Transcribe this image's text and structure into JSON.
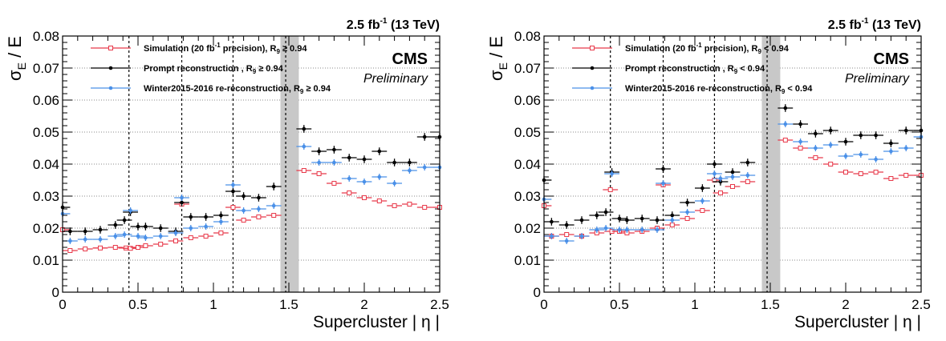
{
  "chart_data": [
    {
      "type": "scatter",
      "panel": "left",
      "lumi": {
        "value": "2.5 fb",
        "sup": "-1",
        "energy": " (13 TeV)"
      },
      "cms_label": "CMS",
      "preliminary_label": "Preliminary",
      "ylabel": {
        "main": "σ",
        "sub": "E",
        "rest": " / E"
      },
      "xlabel": "Supercluster | η |",
      "xlim": [
        0,
        2.5
      ],
      "ylim": [
        0,
        0.08
      ],
      "xticks": [
        "0",
        "0.5",
        "1",
        "1.5",
        "2",
        "2.5"
      ],
      "yticks": [
        "0",
        "0.01",
        "0.02",
        "0.03",
        "0.04",
        "0.05",
        "0.06",
        "0.07",
        "0.08"
      ],
      "grid_y": [
        0.01,
        0.02,
        0.03,
        0.04,
        0.05,
        0.06,
        0.07,
        0.08
      ],
      "vlines": [
        0.44,
        0.79,
        1.13,
        1.479
      ],
      "gap_band": [
        1.4442,
        1.566
      ],
      "legend": [
        {
          "pre": "Simulation (20 fb",
          "sup": "-1",
          "post": " precision), R",
          "sub": "9",
          "cond": " ≥ 0.94",
          "color": "#e8394a",
          "marker": "open-square"
        },
        {
          "pre": "Prompt reconstruction , R",
          "sup": "",
          "post": "",
          "sub": "9",
          "cond": " ≥ 0.94",
          "color": "#000000",
          "marker": "dot"
        },
        {
          "pre": "Winter2015-2016 re-reconstruction, R",
          "sup": "",
          "post": "",
          "sub": "9",
          "cond": " ≥ 0.94",
          "color": "#4a90e8",
          "marker": "dot"
        }
      ],
      "series": [
        {
          "name": "Simulation (20 fb-1 precision), R9 ≥ 0.94",
          "color": "#e8394a",
          "marker": "open-square",
          "x": [
            0.0,
            0.05,
            0.15,
            0.25,
            0.35,
            0.42,
            0.45,
            0.5,
            0.55,
            0.65,
            0.75,
            0.79,
            0.85,
            0.95,
            1.05,
            1.13,
            1.2,
            1.3,
            1.4,
            1.6,
            1.7,
            1.8,
            1.9,
            2.0,
            2.1,
            2.2,
            2.3,
            2.4,
            2.5
          ],
          "y": [
            0.0195,
            0.013,
            0.0135,
            0.0138,
            0.014,
            0.0138,
            0.0137,
            0.014,
            0.0145,
            0.015,
            0.016,
            0.0275,
            0.017,
            0.0175,
            0.0185,
            0.0265,
            0.0225,
            0.0235,
            0.024,
            0.038,
            0.037,
            0.034,
            0.031,
            0.0295,
            0.0285,
            0.027,
            0.0275,
            0.0265,
            0.0265
          ],
          "xerr": 0.05,
          "yerr": 0.0004
        },
        {
          "name": "Prompt reconstruction , R9 ≥ 0.94",
          "color": "#000000",
          "marker": "dot",
          "x": [
            0.0,
            0.05,
            0.15,
            0.25,
            0.35,
            0.41,
            0.45,
            0.5,
            0.55,
            0.65,
            0.75,
            0.79,
            0.85,
            0.95,
            1.05,
            1.13,
            1.2,
            1.3,
            1.4,
            1.6,
            1.7,
            1.8,
            1.9,
            2.0,
            2.1,
            2.2,
            2.3,
            2.4,
            2.5
          ],
          "y": [
            0.0265,
            0.019,
            0.019,
            0.0195,
            0.021,
            0.0225,
            0.025,
            0.0205,
            0.0205,
            0.02,
            0.019,
            0.028,
            0.0235,
            0.0235,
            0.024,
            0.0315,
            0.03,
            0.0295,
            0.033,
            0.051,
            0.044,
            0.0445,
            0.042,
            0.0415,
            0.044,
            0.0405,
            0.0405,
            0.0485,
            0.0485
          ],
          "xerr": 0.05,
          "yerr": 0.0012
        },
        {
          "name": "Winter2015-2016 re-reconstruction, R9 ≥ 0.94",
          "color": "#4a90e8",
          "marker": "dot",
          "x": [
            0.0,
            0.05,
            0.15,
            0.25,
            0.35,
            0.41,
            0.45,
            0.5,
            0.55,
            0.65,
            0.75,
            0.79,
            0.85,
            0.95,
            1.05,
            1.13,
            1.2,
            1.3,
            1.4,
            1.6,
            1.7,
            1.8,
            1.9,
            2.0,
            2.1,
            2.2,
            2.3,
            2.4,
            2.5
          ],
          "y": [
            0.0245,
            0.016,
            0.0165,
            0.0165,
            0.0175,
            0.018,
            0.0255,
            0.0175,
            0.017,
            0.0175,
            0.0185,
            0.0295,
            0.02,
            0.0205,
            0.022,
            0.0335,
            0.0255,
            0.026,
            0.027,
            0.0455,
            0.0405,
            0.0405,
            0.0355,
            0.0345,
            0.036,
            0.034,
            0.038,
            0.039,
            0.039
          ],
          "xerr": 0.05,
          "yerr": 0.001
        }
      ]
    },
    {
      "type": "scatter",
      "panel": "right",
      "lumi": {
        "value": "2.5 fb",
        "sup": "-1",
        "energy": " (13 TeV)"
      },
      "cms_label": "CMS",
      "preliminary_label": "Preliminary",
      "ylabel": {
        "main": "σ",
        "sub": "E",
        "rest": " / E"
      },
      "xlabel": "Supercluster | η |",
      "xlim": [
        0,
        2.5
      ],
      "ylim": [
        0,
        0.08
      ],
      "xticks": [
        "0",
        "0.5",
        "1",
        "1.5",
        "2",
        "2.5"
      ],
      "yticks": [
        "0",
        "0.01",
        "0.02",
        "0.03",
        "0.04",
        "0.05",
        "0.06",
        "0.07",
        "0.08"
      ],
      "grid_y": [
        0.01,
        0.02,
        0.03,
        0.04,
        0.05,
        0.06,
        0.07,
        0.08
      ],
      "vlines": [
        0.44,
        0.79,
        1.13,
        1.479
      ],
      "gap_band": [
        1.4442,
        1.566
      ],
      "legend": [
        {
          "pre": "Simulation (20 fb",
          "sup": "-1",
          "post": " precision), R",
          "sub": "9",
          "cond": " < 0.94",
          "color": "#e8394a",
          "marker": "open-square"
        },
        {
          "pre": "Prompt reconstruction , R",
          "sup": "",
          "post": "",
          "sub": "9",
          "cond": " < 0.94",
          "color": "#000000",
          "marker": "dot"
        },
        {
          "pre": "Winter2015-2016 re-reconstruction, R",
          "sup": "",
          "post": "",
          "sub": "9",
          "cond": " < 0.94",
          "color": "#4a90e8",
          "marker": "dot"
        }
      ],
      "series": [
        {
          "name": "Simulation (20 fb-1 precision), R9 < 0.94",
          "color": "#e8394a",
          "marker": "open-square",
          "x": [
            0.0,
            0.05,
            0.15,
            0.25,
            0.35,
            0.44,
            0.45,
            0.5,
            0.55,
            0.65,
            0.75,
            0.79,
            0.85,
            0.95,
            1.05,
            1.13,
            1.17,
            1.25,
            1.35,
            1.6,
            1.7,
            1.8,
            1.9,
            2.0,
            2.1,
            2.2,
            2.3,
            2.4,
            2.5
          ],
          "y": [
            0.027,
            0.0175,
            0.018,
            0.0175,
            0.0185,
            0.032,
            0.019,
            0.019,
            0.0185,
            0.019,
            0.02,
            0.0335,
            0.021,
            0.023,
            0.0255,
            0.035,
            0.031,
            0.033,
            0.0345,
            0.0475,
            0.045,
            0.042,
            0.04,
            0.0375,
            0.037,
            0.0375,
            0.0355,
            0.0365,
            0.0365
          ],
          "xerr": 0.05,
          "yerr": 0.0004
        },
        {
          "name": "Prompt reconstruction , R9 < 0.94",
          "color": "#000000",
          "marker": "dot",
          "x": [
            0.0,
            0.05,
            0.15,
            0.25,
            0.35,
            0.41,
            0.45,
            0.5,
            0.55,
            0.65,
            0.75,
            0.79,
            0.85,
            0.95,
            1.05,
            1.13,
            1.17,
            1.25,
            1.35,
            1.6,
            1.7,
            1.8,
            1.9,
            2.0,
            2.1,
            2.2,
            2.3,
            2.4,
            2.5
          ],
          "y": [
            0.035,
            0.022,
            0.021,
            0.0225,
            0.024,
            0.025,
            0.0375,
            0.023,
            0.0225,
            0.023,
            0.0225,
            0.0385,
            0.024,
            0.028,
            0.0325,
            0.04,
            0.0345,
            0.0375,
            0.0405,
            0.0575,
            0.0525,
            0.0495,
            0.0505,
            0.047,
            0.049,
            0.049,
            0.0465,
            0.0505,
            0.0505
          ],
          "xerr": 0.05,
          "yerr": 0.0012
        },
        {
          "name": "Winter2015-2016 re-reconstruction, R9 < 0.94",
          "color": "#4a90e8",
          "marker": "dot",
          "x": [
            0.0,
            0.05,
            0.15,
            0.25,
            0.35,
            0.41,
            0.45,
            0.5,
            0.55,
            0.65,
            0.75,
            0.79,
            0.85,
            0.95,
            1.05,
            1.13,
            1.17,
            1.25,
            1.35,
            1.6,
            1.7,
            1.8,
            1.9,
            2.0,
            2.1,
            2.2,
            2.3,
            2.4,
            2.5
          ],
          "y": [
            0.029,
            0.0175,
            0.016,
            0.0175,
            0.0195,
            0.02,
            0.037,
            0.0195,
            0.0195,
            0.0195,
            0.0195,
            0.034,
            0.0225,
            0.025,
            0.0285,
            0.037,
            0.0355,
            0.036,
            0.0365,
            0.0525,
            0.047,
            0.045,
            0.046,
            0.0425,
            0.043,
            0.0415,
            0.044,
            0.045,
            0.0485
          ],
          "xerr": 0.05,
          "yerr": 0.001
        }
      ]
    }
  ]
}
